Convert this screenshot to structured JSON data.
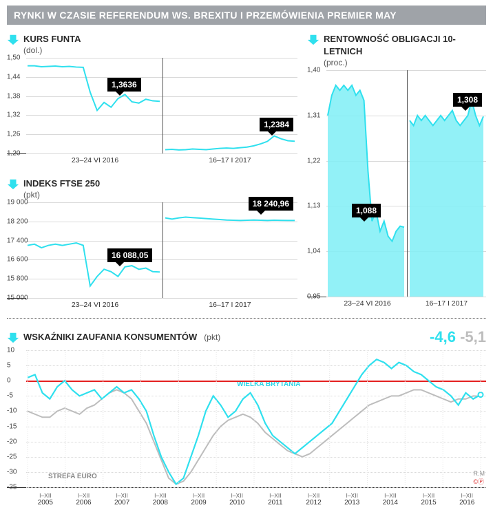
{
  "colors": {
    "accent": "#2fe0ee",
    "accent_fill": "#7feef6",
    "header_bg": "#9fa3a8",
    "flag_bg": "#111111",
    "grid": "#d9d9d9",
    "axis": "#333333",
    "grey_line": "#bdbdbd",
    "red_line": "#e42020"
  },
  "header": "RYNKI W CZASIE REFERENDUM WS. BREXITU I PRZEMÓWIENIA PREMIER MAY",
  "gbp": {
    "title": "KURS FUNTA",
    "unit": "(dol.)",
    "ylim": [
      1.2,
      1.5
    ],
    "ytick_step": 0.06,
    "x_labels": [
      "23–24 VI 2016",
      "16–17 I 2017"
    ],
    "flag_left": "1,3636",
    "flag_right": "1,2384",
    "series_left": [
      1.475,
      1.475,
      1.472,
      1.473,
      1.474,
      1.472,
      1.473,
      1.471,
      1.47,
      1.392,
      1.335,
      1.36,
      1.345,
      1.372,
      1.385,
      1.362,
      1.358,
      1.37,
      1.365,
      1.3636
    ],
    "series_right": [
      1.212,
      1.213,
      1.211,
      1.212,
      1.214,
      1.213,
      1.212,
      1.214,
      1.216,
      1.217,
      1.216,
      1.218,
      1.22,
      1.224,
      1.23,
      1.238,
      1.255,
      1.246,
      1.24,
      1.2384
    ]
  },
  "ftse": {
    "title": "INDEKS FTSE 250",
    "unit": "(pkt)",
    "ylim": [
      15000,
      19000
    ],
    "ytick_step": 800,
    "x_labels": [
      "23–24 VI 2016",
      "16–17 I 2017"
    ],
    "flag_left": "16 088,05",
    "flag_right": "18 240,96",
    "series_left": [
      17200,
      17250,
      17100,
      17200,
      17250,
      17200,
      17250,
      17300,
      17200,
      15500,
      15900,
      16200,
      16100,
      15900,
      16300,
      16350,
      16200,
      16250,
      16100,
      16088
    ],
    "series_right": [
      18350,
      18300,
      18350,
      18380,
      18360,
      18340,
      18320,
      18300,
      18280,
      18260,
      18250,
      18240,
      18250,
      18260,
      18250,
      18240,
      18250,
      18245,
      18242,
      18241
    ]
  },
  "bond": {
    "title": "RENTOWNOŚĆ OBLIGACJI 10-LETNICH",
    "unit": "(proc.)",
    "ylim": [
      0.95,
      1.4
    ],
    "ytick_step": 0.09,
    "x_labels": [
      "23–24 VI 2016",
      "16–17 I 2017"
    ],
    "flag_left": "1,088",
    "flag_right": "1,308",
    "series_left": [
      1.31,
      1.35,
      1.37,
      1.36,
      1.37,
      1.36,
      1.37,
      1.35,
      1.36,
      1.34,
      1.2,
      1.1,
      1.12,
      1.08,
      1.1,
      1.07,
      1.06,
      1.08,
      1.09,
      1.088
    ],
    "series_right": [
      1.3,
      1.29,
      1.31,
      1.3,
      1.31,
      1.3,
      1.29,
      1.3,
      1.31,
      1.3,
      1.31,
      1.32,
      1.3,
      1.29,
      1.3,
      1.31,
      1.34,
      1.31,
      1.29,
      1.308
    ]
  },
  "confidence": {
    "title": "WSKAŹNIKI ZAUFANIA KONSUMENTÓW",
    "unit": "(pkt)",
    "ylim": [
      -35,
      10
    ],
    "ytick_step": 5,
    "years": [
      "2005",
      "2006",
      "2007",
      "2008",
      "2009",
      "2010",
      "2011",
      "2012",
      "2013",
      "2014",
      "2015",
      "2016"
    ],
    "ixii": "I–XII",
    "uk_label": "WIELKA BRYTANIA",
    "euro_label": "STREFA EURO",
    "uk_value": "-4,6",
    "euro_value": "-5,1",
    "uk_series": [
      1,
      2,
      -4,
      -6,
      -2,
      0,
      -3,
      -5,
      -4,
      -3,
      -6,
      -4,
      -2,
      -4,
      -3,
      -6,
      -10,
      -18,
      -25,
      -30,
      -34,
      -32,
      -25,
      -18,
      -10,
      -5,
      -8,
      -12,
      -10,
      -6,
      -4,
      -8,
      -14,
      -18,
      -20,
      -22,
      -24,
      -22,
      -20,
      -18,
      -16,
      -14,
      -10,
      -6,
      -2,
      2,
      5,
      7,
      6,
      4,
      6,
      5,
      3,
      2,
      0,
      -2,
      -3,
      -5,
      -8,
      -4,
      -6,
      -4.6
    ],
    "euro_series": [
      -10,
      -11,
      -12,
      -12,
      -10,
      -9,
      -10,
      -11,
      -9,
      -8,
      -6,
      -4,
      -3,
      -4,
      -6,
      -10,
      -14,
      -20,
      -26,
      -32,
      -34,
      -33,
      -30,
      -26,
      -22,
      -18,
      -15,
      -13,
      -12,
      -11,
      -12,
      -14,
      -17,
      -19,
      -21,
      -23,
      -24,
      -25,
      -24,
      -22,
      -20,
      -18,
      -16,
      -14,
      -12,
      -10,
      -8,
      -7,
      -6,
      -5,
      -5,
      -4,
      -3,
      -3,
      -4,
      -5,
      -6,
      -7,
      -6,
      -6,
      -5,
      -5.1
    ]
  },
  "footer": {
    "author": "R.M",
    "copyright": "©Ⓟ"
  }
}
